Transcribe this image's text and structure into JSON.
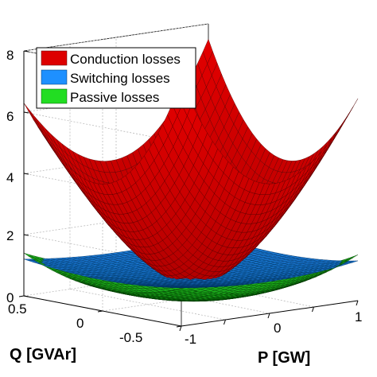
{
  "chart_data": {
    "type": "surface",
    "title": "",
    "xlabel": "P [GW]",
    "ylabel": "Q [GVAr]",
    "zlabel": "",
    "x_ticks": [
      "-1",
      "0",
      "1"
    ],
    "y_ticks": [
      "0.5",
      "0",
      "-0.5"
    ],
    "z_ticks": [
      "0",
      "2",
      "4",
      "6",
      "8"
    ],
    "xlim": [
      -1,
      1
    ],
    "ylim": [
      -0.5,
      0.5
    ],
    "zlim": [
      0,
      8
    ],
    "grid": true,
    "legend_position": "top-left",
    "series": [
      {
        "name": "Conduction losses",
        "color": "#dd0000",
        "corner_values": {
          "P=-1,Q=0.5": 6.3,
          "P=1,Q=0.5": 7.5,
          "P=1,Q=-0.5": 6.6,
          "P=-1,Q=-0.5": 8.0
        },
        "minimum": 0.4
      },
      {
        "name": "Switching losses",
        "color": "#1e90ff",
        "corner_values": {
          "P=-1,Q=0.5": 1.2,
          "P=1,Q=0.5": 1.1,
          "P=1,Q=-0.5": 1.3,
          "P=-1,Q=-0.5": 1.25
        },
        "minimum": 0.75
      },
      {
        "name": "Passive losses",
        "color": "#22dd22",
        "corner_values": {
          "P=-1,Q=0.5": 1.4,
          "P=1,Q=0.5": 1.0,
          "P=1,Q=-0.5": 1.5,
          "P=-1,Q=-0.5": 1.2
        },
        "minimum": 0.0
      }
    ]
  }
}
